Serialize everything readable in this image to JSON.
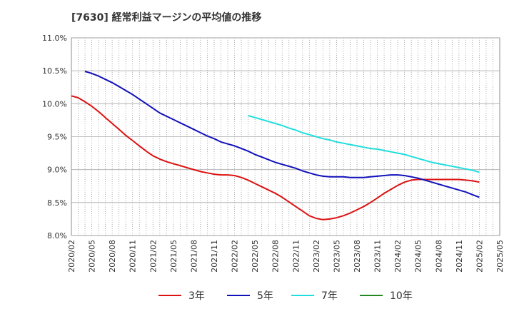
{
  "chart_data": {
    "type": "line",
    "title": "[7630]  経常利益マージンの平均値の推移",
    "xlabel": "",
    "ylabel": "",
    "ylim": [
      8.0,
      11.0
    ],
    "y_ticks": [
      "8.0%",
      "8.5%",
      "9.0%",
      "9.5%",
      "10.0%",
      "10.5%",
      "11.0%"
    ],
    "x_ticks": [
      "2020/02",
      "2020/05",
      "2020/08",
      "2020/11",
      "2021/02",
      "2021/05",
      "2021/08",
      "2021/11",
      "2022/02",
      "2022/05",
      "2022/08",
      "2022/11",
      "2023/02",
      "2023/05",
      "2023/08",
      "2023/11",
      "2024/02",
      "2024/05",
      "2024/08",
      "2024/11",
      "2025/02",
      "2025/05"
    ],
    "grid": true,
    "legend_position": "bottom",
    "series": [
      {
        "name": "3年",
        "color": "#dd1111",
        "x": [
          "2020/02",
          "2020/03",
          "2020/04",
          "2020/05",
          "2020/06",
          "2020/07",
          "2020/08",
          "2020/09",
          "2020/10",
          "2020/11",
          "2020/12",
          "2021/01",
          "2021/02",
          "2021/03",
          "2021/04",
          "2021/05",
          "2021/06",
          "2021/07",
          "2021/08",
          "2021/09",
          "2021/10",
          "2021/11",
          "2021/12",
          "2022/01",
          "2022/02",
          "2022/03",
          "2022/04",
          "2022/05",
          "2022/06",
          "2022/07",
          "2022/08",
          "2022/09",
          "2022/10",
          "2022/11",
          "2022/12",
          "2023/01",
          "2023/02",
          "2023/03",
          "2023/04",
          "2023/05",
          "2023/06",
          "2023/07",
          "2023/08",
          "2023/09",
          "2023/10",
          "2023/11",
          "2023/12",
          "2024/01",
          "2024/02",
          "2024/03",
          "2024/04",
          "2024/05",
          "2024/06",
          "2024/07",
          "2024/08",
          "2024/09",
          "2024/10",
          "2024/11",
          "2024/12",
          "2025/01",
          "2025/02"
        ],
        "values": [
          10.12,
          10.09,
          10.03,
          9.96,
          9.88,
          9.79,
          9.7,
          9.61,
          9.52,
          9.44,
          9.36,
          9.28,
          9.21,
          9.16,
          9.12,
          9.09,
          9.06,
          9.03,
          9.0,
          8.97,
          8.95,
          8.93,
          8.92,
          8.92,
          8.91,
          8.88,
          8.84,
          8.79,
          8.74,
          8.69,
          8.64,
          8.58,
          8.51,
          8.44,
          8.37,
          8.3,
          8.26,
          8.24,
          8.25,
          8.27,
          8.3,
          8.34,
          8.39,
          8.44,
          8.5,
          8.57,
          8.64,
          8.7,
          8.76,
          8.81,
          8.84,
          8.85,
          8.85,
          8.85,
          8.85,
          8.85,
          8.85,
          8.85,
          8.84,
          8.83,
          8.81
        ]
      },
      {
        "name": "5年",
        "color": "#1111bb",
        "x": [
          "2020/04",
          "2020/05",
          "2020/06",
          "2020/07",
          "2020/08",
          "2020/09",
          "2020/10",
          "2020/11",
          "2020/12",
          "2021/01",
          "2021/02",
          "2021/03",
          "2021/04",
          "2021/05",
          "2021/06",
          "2021/07",
          "2021/08",
          "2021/09",
          "2021/10",
          "2021/11",
          "2021/12",
          "2022/01",
          "2022/02",
          "2022/03",
          "2022/04",
          "2022/05",
          "2022/06",
          "2022/07",
          "2022/08",
          "2022/09",
          "2022/10",
          "2022/11",
          "2022/12",
          "2023/01",
          "2023/02",
          "2023/03",
          "2023/04",
          "2023/05",
          "2023/06",
          "2023/07",
          "2023/08",
          "2023/09",
          "2023/10",
          "2023/11",
          "2023/12",
          "2024/01",
          "2024/02",
          "2024/03",
          "2024/04",
          "2024/05",
          "2024/06",
          "2024/07",
          "2024/08",
          "2024/09",
          "2024/10",
          "2024/11",
          "2024/12",
          "2025/01",
          "2025/02"
        ],
        "values": [
          10.49,
          10.46,
          10.42,
          10.37,
          10.32,
          10.26,
          10.2,
          10.14,
          10.07,
          10.0,
          9.93,
          9.86,
          9.81,
          9.76,
          9.71,
          9.66,
          9.61,
          9.56,
          9.51,
          9.47,
          9.42,
          9.39,
          9.36,
          9.32,
          9.28,
          9.23,
          9.19,
          9.15,
          9.11,
          9.08,
          9.05,
          9.02,
          8.98,
          8.95,
          8.92,
          8.9,
          8.89,
          8.89,
          8.89,
          8.88,
          8.88,
          8.88,
          8.89,
          8.9,
          8.91,
          8.92,
          8.92,
          8.91,
          8.89,
          8.87,
          8.84,
          8.81,
          8.78,
          8.75,
          8.72,
          8.69,
          8.66,
          8.62,
          8.58
        ]
      },
      {
        "name": "7年",
        "color": "#22dddd",
        "x": [
          "2022/04",
          "2022/05",
          "2022/06",
          "2022/07",
          "2022/08",
          "2022/09",
          "2022/10",
          "2022/11",
          "2022/12",
          "2023/01",
          "2023/02",
          "2023/03",
          "2023/04",
          "2023/05",
          "2023/06",
          "2023/07",
          "2023/08",
          "2023/09",
          "2023/10",
          "2023/11",
          "2023/12",
          "2024/01",
          "2024/02",
          "2024/03",
          "2024/04",
          "2024/05",
          "2024/06",
          "2024/07",
          "2024/08",
          "2024/09",
          "2024/10",
          "2024/11",
          "2024/12",
          "2025/01",
          "2025/02"
        ],
        "values": [
          9.82,
          9.79,
          9.76,
          9.73,
          9.7,
          9.67,
          9.63,
          9.6,
          9.56,
          9.53,
          9.5,
          9.47,
          9.45,
          9.42,
          9.4,
          9.38,
          9.36,
          9.34,
          9.32,
          9.31,
          9.29,
          9.27,
          9.25,
          9.23,
          9.2,
          9.17,
          9.14,
          9.11,
          9.09,
          9.07,
          9.05,
          9.03,
          9.01,
          8.99,
          8.96
        ]
      },
      {
        "name": "10年",
        "color": "#228822",
        "x": [],
        "values": []
      }
    ]
  }
}
